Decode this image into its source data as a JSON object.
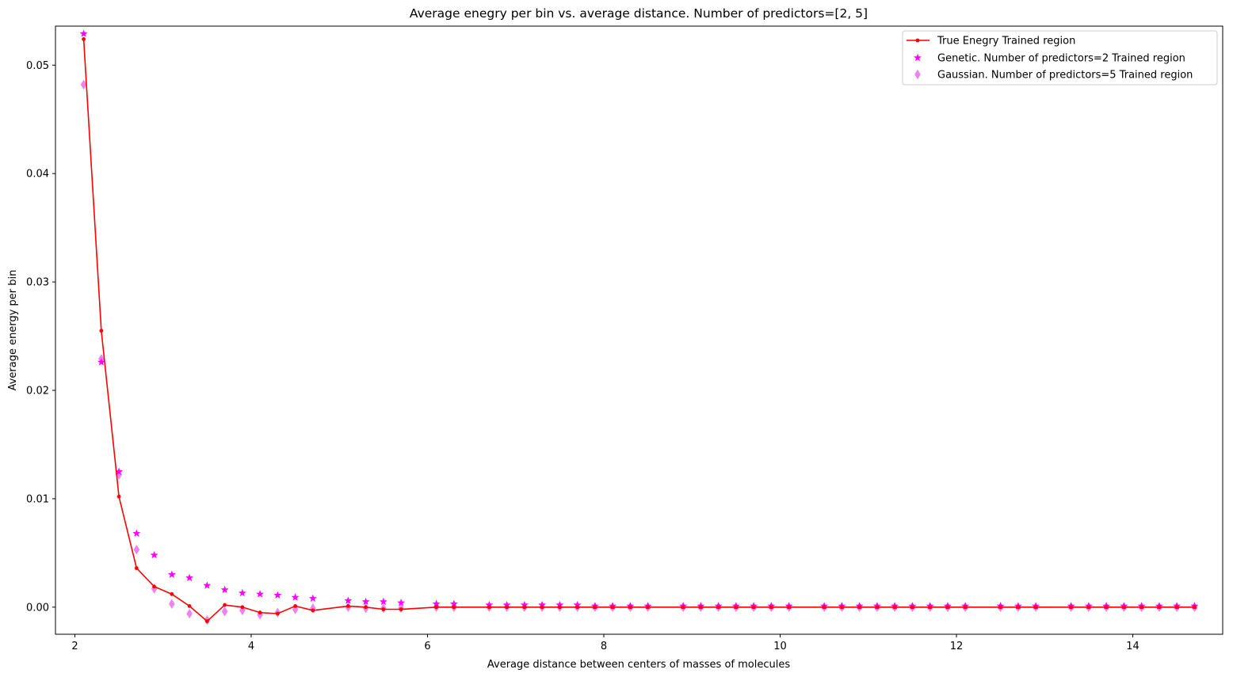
{
  "chart_data": {
    "type": "scatter",
    "title": "Average enegry per bin vs. average distance. Number of predictors=[2, 5]",
    "xlabel": "Average distance between centers of masses of molecules",
    "ylabel": "Average energy per bin",
    "xlim": [
      1.78,
      15.02
    ],
    "ylim": [
      -0.0025,
      0.0536
    ],
    "xticks": [
      2,
      4,
      6,
      8,
      10,
      12,
      14
    ],
    "xtick_labels": [
      "2",
      "4",
      "6",
      "8",
      "10",
      "12",
      "14"
    ],
    "yticks": [
      0.0,
      0.01,
      0.02,
      0.03,
      0.04,
      0.05
    ],
    "ytick_labels": [
      "0.00",
      "0.01",
      "0.02",
      "0.03",
      "0.04",
      "0.05"
    ],
    "grid": false,
    "legend_position": "top-right",
    "series": [
      {
        "name": "True Enegry Trained region",
        "kind": "line",
        "marker": "dot",
        "color": "#ff0000",
        "x": [
          2.1,
          2.3,
          2.5,
          2.7,
          2.9,
          3.1,
          3.3,
          3.5,
          3.7,
          3.9,
          4.1,
          4.3,
          4.5,
          4.7,
          5.1,
          5.3,
          5.5,
          5.7,
          6.1,
          6.3,
          6.7,
          6.9,
          7.1,
          7.3,
          7.5,
          7.7,
          7.9,
          8.1,
          8.3,
          8.5,
          8.9,
          9.1,
          9.3,
          9.5,
          9.7,
          9.9,
          10.1,
          10.5,
          10.7,
          10.9,
          11.1,
          11.3,
          11.5,
          11.7,
          11.9,
          12.1,
          12.5,
          12.7,
          12.9,
          13.3,
          13.5,
          13.7,
          13.9,
          14.1,
          14.3,
          14.5,
          14.7
        ],
        "y": [
          0.0524,
          0.0255,
          0.0102,
          0.0036,
          0.0019,
          0.0012,
          0.0001,
          -0.0013,
          0.0002,
          0.0,
          -0.0005,
          -0.0006,
          0.0001,
          -0.0003,
          0.0001,
          0.0,
          -0.0002,
          -0.0002,
          0.0,
          0.0,
          0.0,
          0.0,
          0.0,
          0.0,
          0.0,
          0.0,
          0.0,
          0.0,
          0.0,
          0.0,
          0.0,
          0.0,
          0.0,
          0.0,
          0.0,
          0.0,
          0.0,
          0.0,
          0.0,
          0.0,
          0.0,
          0.0,
          0.0,
          0.0,
          0.0,
          0.0,
          0.0,
          0.0,
          0.0,
          0.0,
          0.0,
          0.0,
          0.0,
          0.0,
          0.0,
          0.0,
          0.0
        ]
      },
      {
        "name": "Genetic. Number of predictors=2 Trained region",
        "kind": "scatter",
        "marker": "star",
        "color": "#ff00ff",
        "x": [
          2.1,
          2.3,
          2.5,
          2.7,
          2.9,
          3.1,
          3.3,
          3.5,
          3.7,
          3.9,
          4.1,
          4.3,
          4.5,
          4.7,
          5.1,
          5.3,
          5.5,
          5.7,
          6.1,
          6.3,
          6.7,
          6.9,
          7.1,
          7.3,
          7.5,
          7.7,
          7.9,
          8.1,
          8.3,
          8.5,
          8.9,
          9.1,
          9.3,
          9.5,
          9.7,
          9.9,
          10.1,
          10.5,
          10.7,
          10.9,
          11.1,
          11.3,
          11.5,
          11.7,
          11.9,
          12.1,
          12.5,
          12.7,
          12.9,
          13.3,
          13.5,
          13.7,
          13.9,
          14.1,
          14.3,
          14.5,
          14.7
        ],
        "y": [
          0.0529,
          0.0226,
          0.0125,
          0.0068,
          0.0048,
          0.003,
          0.0027,
          0.002,
          0.0016,
          0.0013,
          0.0012,
          0.0011,
          0.0009,
          0.0008,
          0.0006,
          0.0005,
          0.0005,
          0.0004,
          0.0003,
          0.0003,
          0.0002,
          0.0002,
          0.0002,
          0.0002,
          0.0002,
          0.0002,
          0.0001,
          0.0001,
          0.0001,
          0.0001,
          0.0001,
          0.0001,
          0.0001,
          0.0001,
          0.0001,
          0.0001,
          0.0001,
          0.0001,
          0.0001,
          0.0001,
          0.0001,
          0.0001,
          0.0001,
          0.0001,
          0.0001,
          0.0001,
          0.0001,
          0.0001,
          0.0001,
          0.0001,
          0.0001,
          0.0001,
          0.0001,
          0.0001,
          0.0001,
          0.0001,
          0.0001
        ]
      },
      {
        "name": "Gaussian. Number of predictors=5 Trained region",
        "kind": "scatter",
        "marker": "thin_diamond",
        "color": "#ee82ee",
        "x": [
          2.1,
          2.3,
          2.5,
          2.7,
          2.9,
          3.1,
          3.3,
          3.5,
          3.7,
          3.9,
          4.1,
          4.3,
          4.5,
          4.7,
          5.1,
          5.3,
          5.5,
          5.7,
          6.1,
          6.3,
          6.7,
          6.9,
          7.1,
          7.3,
          7.5,
          7.7,
          7.9,
          8.1,
          8.3,
          8.5,
          8.9,
          9.1,
          9.3,
          9.5,
          9.7,
          9.9,
          10.1,
          10.5,
          10.7,
          10.9,
          11.1,
          11.3,
          11.5,
          11.7,
          11.9,
          12.1,
          12.5,
          12.7,
          12.9,
          13.3,
          13.5,
          13.7,
          13.9,
          14.1,
          14.3,
          14.5,
          14.7
        ],
        "y": [
          0.0482,
          0.0229,
          0.0122,
          0.0053,
          0.0017,
          0.0003,
          -0.0006,
          -0.0012,
          -0.0004,
          -0.0003,
          -0.0007,
          -0.0005,
          -0.0002,
          -0.0001,
          0.0,
          -0.0001,
          -0.0001,
          -0.0001,
          0.0,
          0.0,
          0.0,
          0.0,
          0.0,
          0.0,
          0.0,
          0.0,
          0.0,
          0.0,
          0.0,
          0.0,
          0.0,
          0.0,
          0.0,
          0.0,
          0.0,
          0.0,
          0.0,
          0.0,
          0.0,
          0.0,
          0.0,
          0.0,
          0.0,
          0.0,
          0.0,
          0.0,
          0.0,
          0.0,
          0.0,
          0.0,
          0.0,
          0.0,
          0.0,
          0.0,
          0.0,
          0.0,
          0.0
        ]
      }
    ]
  }
}
